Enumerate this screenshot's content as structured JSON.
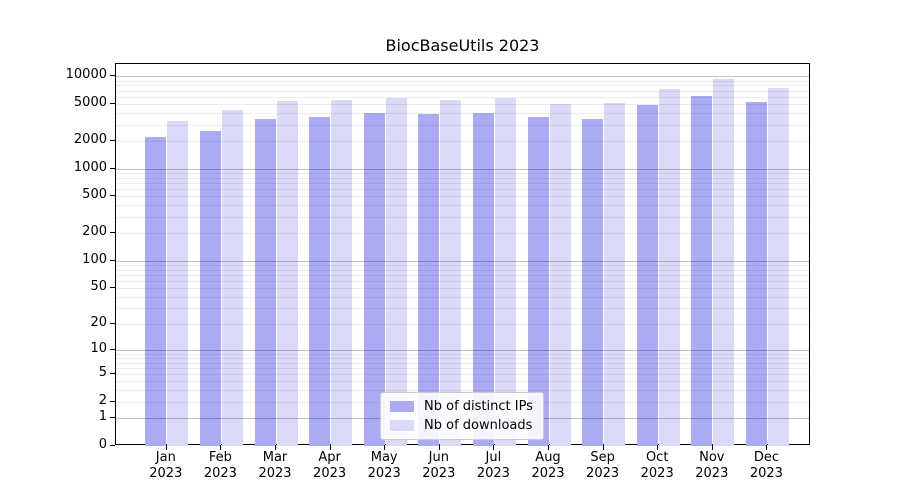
{
  "chart_data": {
    "type": "bar",
    "title": "BiocBaseUtils 2023",
    "categories": [
      "Jan",
      "Feb",
      "Mar",
      "Apr",
      "May",
      "Jun",
      "Jul",
      "Aug",
      "Sep",
      "Oct",
      "Nov",
      "Dec"
    ],
    "year_label": "2023",
    "series": [
      {
        "name": "Nb of distinct IPs",
        "color": "#aaaaf5",
        "values": [
          2230,
          2540,
          3480,
          3650,
          4000,
          3880,
          4040,
          3620,
          3470,
          4930,
          6100,
          5310
        ]
      },
      {
        "name": "Nb of downloads",
        "color": "#d9d9f8",
        "values": [
          3280,
          4270,
          5400,
          5550,
          5820,
          5490,
          5860,
          5010,
          5140,
          7340,
          9270,
          7460
        ]
      }
    ],
    "xlabel": "",
    "ylabel": "",
    "y_axis": {
      "scale": "log1p",
      "ticks": [
        0,
        1,
        2,
        5,
        10,
        20,
        50,
        100,
        200,
        500,
        1000,
        2000,
        5000,
        10000
      ],
      "ylim": [
        0,
        13600
      ],
      "major_gridlines": [
        1,
        10,
        100,
        1000,
        10000
      ],
      "minor_gridlines": "2-9 per decade"
    },
    "grid": "horizontal, drawn over bars",
    "legend_position": "lower center"
  }
}
